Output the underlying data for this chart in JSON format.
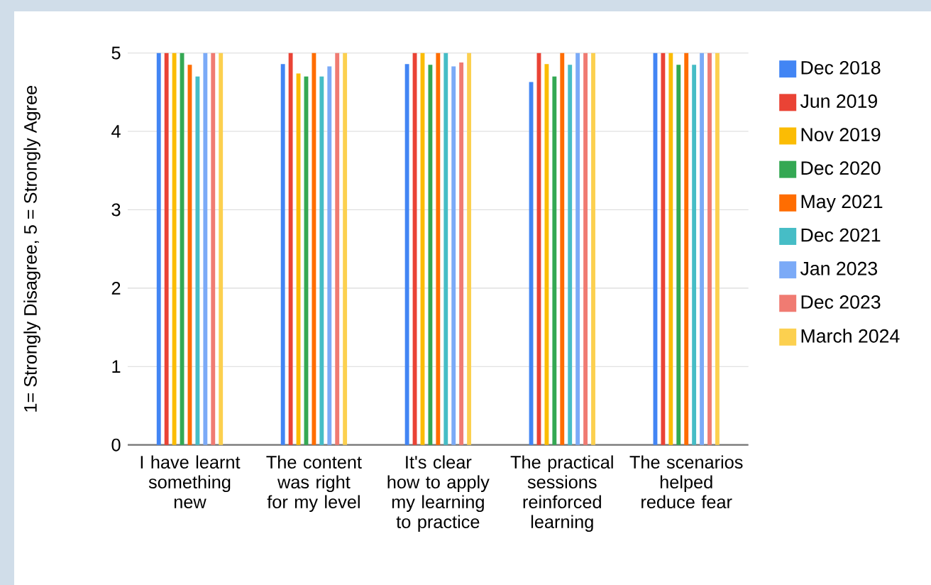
{
  "chart_data": {
    "type": "bar",
    "ylabel": "1= Strongly Disagree,  5 = Strongly Agree",
    "categories": [
      "I have learnt something new",
      "The content was right for my level",
      "It's clear how to apply my learning to practice",
      "The practical sessions reinforced learning",
      "The scenarios helped reduce fear"
    ],
    "series": [
      {
        "name": "Dec 2018",
        "color": "#4285f4",
        "values": [
          5,
          4.86,
          4.86,
          4.63,
          5
        ]
      },
      {
        "name": "Jun 2019",
        "color": "#ea4335",
        "values": [
          5,
          5,
          5,
          5,
          5
        ]
      },
      {
        "name": "Nov 2019",
        "color": "#fbbc04",
        "values": [
          5,
          4.74,
          5,
          4.86,
          5
        ]
      },
      {
        "name": "Dec 2020",
        "color": "#34a853",
        "values": [
          5,
          4.7,
          4.85,
          4.7,
          4.85
        ]
      },
      {
        "name": "May 2021",
        "color": "#ff6d01",
        "values": [
          4.85,
          5,
          5,
          5,
          5
        ]
      },
      {
        "name": "Dec 2021",
        "color": "#46bdc6",
        "values": [
          4.7,
          4.7,
          5,
          4.85,
          4.85
        ]
      },
      {
        "name": "Jan 2023",
        "color": "#7baaf7",
        "values": [
          5,
          4.83,
          4.83,
          5,
          5
        ]
      },
      {
        "name": "Dec 2023",
        "color": "#f07b72",
        "values": [
          5,
          5,
          4.88,
          5,
          5
        ]
      },
      {
        "name": "March 2024",
        "color": "#fcd04f",
        "values": [
          5,
          5,
          5,
          5,
          5
        ]
      }
    ],
    "ylim": [
      0,
      5
    ],
    "yticks": [
      0,
      1,
      2,
      3,
      4,
      5
    ],
    "grid": "y",
    "legend": "right"
  }
}
